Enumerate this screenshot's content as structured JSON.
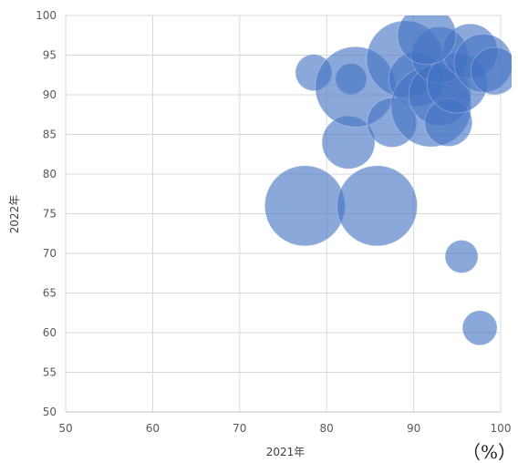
{
  "chart_data": {
    "type": "scatter",
    "title": "",
    "xlabel": "2021年",
    "ylabel": "2022年",
    "unit_label": "（%）",
    "xlim": [
      50,
      100
    ],
    "ylim": [
      50,
      100
    ],
    "x_ticks": [
      50,
      60,
      70,
      80,
      90,
      100
    ],
    "y_ticks": [
      50,
      55,
      60,
      65,
      70,
      75,
      80,
      85,
      90,
      95,
      100
    ],
    "grid": true,
    "legend": "none",
    "colors": {
      "bubble_fill": "#4472c4",
      "bubble_opacity": 0.62,
      "grid": "#d9d9d9",
      "axis_line": "#bfbfbf"
    },
    "series": [
      {
        "points": [
          {
            "x": 77.5,
            "y": 76.0,
            "size": 4.4
          },
          {
            "x": 85.8,
            "y": 76.0,
            "size": 4.4
          },
          {
            "x": 82.5,
            "y": 84.0,
            "size": 2.9
          },
          {
            "x": 78.5,
            "y": 92.8,
            "size": 2.0
          },
          {
            "x": 82.8,
            "y": 92.0,
            "size": 1.7
          },
          {
            "x": 83.3,
            "y": 91.0,
            "size": 4.4
          },
          {
            "x": 87.5,
            "y": 86.5,
            "size": 2.7
          },
          {
            "x": 89.0,
            "y": 94.5,
            "size": 4.2
          },
          {
            "x": 90.3,
            "y": 92.0,
            "size": 3.0
          },
          {
            "x": 92.0,
            "y": 88.5,
            "size": 4.4
          },
          {
            "x": 93.0,
            "y": 90.0,
            "size": 3.4
          },
          {
            "x": 94.0,
            "y": 86.5,
            "size": 2.6
          },
          {
            "x": 93.0,
            "y": 95.0,
            "size": 3.1
          },
          {
            "x": 95.0,
            "y": 91.5,
            "size": 3.3
          },
          {
            "x": 96.5,
            "y": 95.5,
            "size": 3.0
          },
          {
            "x": 98.0,
            "y": 94.0,
            "size": 3.2
          },
          {
            "x": 99.3,
            "y": 93.0,
            "size": 2.6
          },
          {
            "x": 91.5,
            "y": 97.5,
            "size": 3.2
          },
          {
            "x": 95.5,
            "y": 69.6,
            "size": 1.8
          },
          {
            "x": 97.6,
            "y": 60.6,
            "size": 1.9
          }
        ]
      }
    ]
  }
}
